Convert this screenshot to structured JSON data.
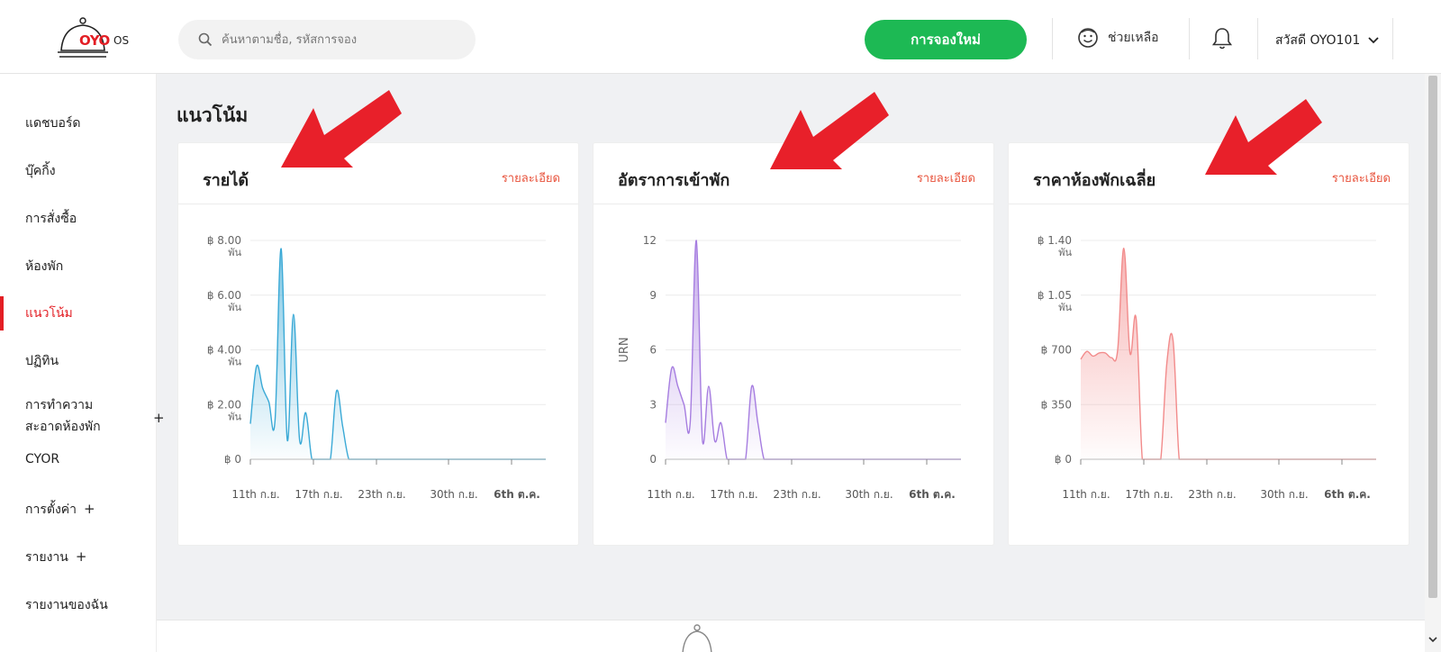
{
  "header": {
    "logo_text": "OYO",
    "logo_suffix": "OS",
    "search_placeholder": "ค้นหาตามชื่อ, รหัสการจอง",
    "new_booking_label": "การจองใหม่",
    "help_label": "ช่วยเหลือ",
    "user_label": "สวัสดี OYO101"
  },
  "sidebar": {
    "items": [
      {
        "label": "แดชบอร์ด",
        "active": false,
        "plus": false
      },
      {
        "label": "บุ๊คกิ้ง",
        "active": false,
        "plus": false
      },
      {
        "label": "การสั่งซื้อ",
        "active": false,
        "plus": false
      },
      {
        "label": "ห้องพัก",
        "active": false,
        "plus": false
      },
      {
        "label": "แนวโน้ม",
        "active": true,
        "plus": false
      },
      {
        "label": "ปฏิทิน",
        "active": false,
        "plus": false
      },
      {
        "label": "การทำความ",
        "label2": "สะอาดห้องพัก",
        "active": false,
        "plus": true
      },
      {
        "label": "CYOR",
        "active": false,
        "plus": false
      },
      {
        "label": "การตั้งค่า",
        "active": false,
        "plus": true
      },
      {
        "label": "รายงาน",
        "active": false,
        "plus": true
      },
      {
        "label": "รายงานของฉัน",
        "active": false,
        "plus": false
      }
    ],
    "plus_symbol": "+"
  },
  "page": {
    "title": "แนวโน้ม",
    "detail_link": "รายละเอียด"
  },
  "colors": {
    "accent": "#e31e24",
    "green": "#1db954",
    "revenue": "#3aa9d6",
    "occupancy": "#a67de0",
    "price": "#f28b8b",
    "arrow": "#e8202a"
  },
  "chart_data": [
    {
      "type": "area",
      "title": "รายได้",
      "xlabel": "",
      "ylabel": "",
      "y_ticks": [
        "฿ 0",
        "฿ 2.00 พัน",
        "฿ 4.00 พัน",
        "฿ 6.00 พัน",
        "฿ 8.00 พัน"
      ],
      "ylim": [
        0,
        8000
      ],
      "x_ticks": [
        "11th ก.ย.",
        "17th ก.ย.",
        "23th ก.ย.",
        "30th ก.ย.",
        "6th ต.ค."
      ],
      "x": [
        0,
        1,
        2,
        3,
        4,
        5,
        6,
        7,
        8,
        9,
        10,
        11,
        12,
        13,
        14,
        15,
        16,
        17,
        18,
        19,
        20,
        21,
        22,
        23,
        24,
        25,
        26,
        27,
        28,
        29,
        30,
        31,
        32,
        33,
        34,
        35,
        36,
        37,
        38,
        39,
        40,
        41,
        42,
        43,
        44,
        45,
        46,
        47,
        48
      ],
      "values": [
        1300,
        3400,
        2600,
        2100,
        1400,
        7700,
        700,
        5300,
        700,
        1700,
        0,
        0,
        0,
        0,
        2500,
        1200,
        0,
        0,
        0,
        0,
        0,
        0,
        0,
        0,
        0,
        0,
        0,
        0,
        0,
        0,
        0,
        0,
        0,
        0,
        0,
        0,
        0,
        0,
        0,
        0,
        0,
        0,
        0,
        0,
        0,
        0,
        0,
        0,
        0
      ]
    },
    {
      "type": "area",
      "title": "อัตราการเข้าพัก",
      "xlabel": "",
      "ylabel": "URN",
      "y_ticks": [
        "0",
        "3",
        "6",
        "9",
        "12"
      ],
      "ylim": [
        0,
        12
      ],
      "x_ticks": [
        "11th ก.ย.",
        "17th ก.ย.",
        "23th ก.ย.",
        "30th ก.ย.",
        "6th ต.ค."
      ],
      "x": [
        0,
        1,
        2,
        3,
        4,
        5,
        6,
        7,
        8,
        9,
        10,
        11,
        12,
        13,
        14,
        15,
        16,
        17,
        18,
        19,
        20,
        21,
        22,
        23,
        24,
        25,
        26,
        27,
        28,
        29,
        30,
        31,
        32,
        33,
        34,
        35,
        36,
        37,
        38,
        39,
        40,
        41,
        42,
        43,
        44,
        45,
        46,
        47,
        48
      ],
      "values": [
        2,
        5,
        4,
        3,
        2,
        12,
        1,
        4,
        1,
        2,
        0,
        0,
        0,
        0,
        4,
        2,
        0,
        0,
        0,
        0,
        0,
        0,
        0,
        0,
        0,
        0,
        0,
        0,
        0,
        0,
        0,
        0,
        0,
        0,
        0,
        0,
        0,
        0,
        0,
        0,
        0,
        0,
        0,
        0,
        0,
        0,
        0,
        0,
        0
      ]
    },
    {
      "type": "area",
      "title": "ราคาห้องพักเฉลี่ย",
      "xlabel": "",
      "ylabel": "",
      "y_ticks": [
        "฿ 0",
        "฿ 350",
        "฿ 700",
        "฿ 1.05 พัน",
        "฿ 1.40 พัน"
      ],
      "ylim": [
        0,
        1400
      ],
      "x_ticks": [
        "11th ก.ย.",
        "17th ก.ย.",
        "23th ก.ย.",
        "30th ก.ย.",
        "6th ต.ค."
      ],
      "x": [
        0,
        1,
        2,
        3,
        4,
        5,
        6,
        7,
        8,
        9,
        10,
        11,
        12,
        13,
        14,
        15,
        16,
        17,
        18,
        19,
        20,
        21,
        22,
        23,
        24,
        25,
        26,
        27,
        28,
        29,
        30,
        31,
        32,
        33,
        34,
        35,
        36,
        37,
        38,
        39,
        40,
        41,
        42,
        43,
        44,
        45,
        46,
        47,
        48
      ],
      "values": [
        640,
        690,
        660,
        680,
        680,
        650,
        700,
        1350,
        680,
        900,
        0,
        0,
        0,
        0,
        620,
        760,
        0,
        0,
        0,
        0,
        0,
        0,
        0,
        0,
        0,
        0,
        0,
        0,
        0,
        0,
        0,
        0,
        0,
        0,
        0,
        0,
        0,
        0,
        0,
        0,
        0,
        0,
        0,
        0,
        0,
        0,
        0,
        0,
        0
      ]
    }
  ]
}
